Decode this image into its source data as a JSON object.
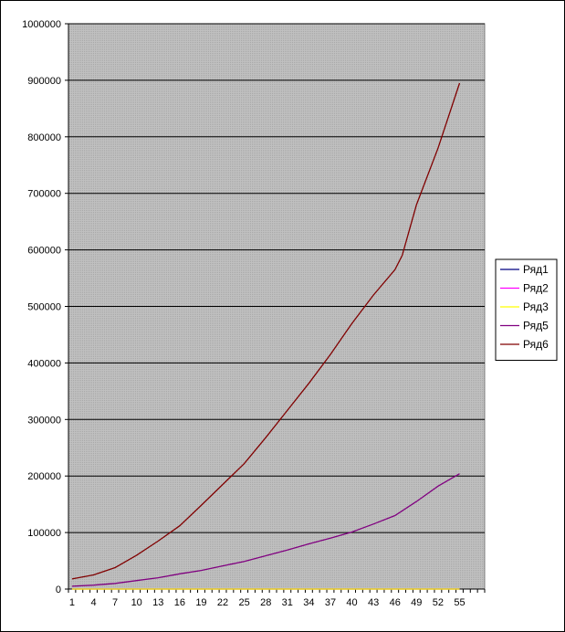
{
  "chart_data": {
    "type": "line",
    "title": "",
    "xlabel": "",
    "ylabel": "",
    "ylim": [
      0,
      1000000
    ],
    "y_ticks": [
      "0",
      "100000",
      "200000",
      "300000",
      "400000",
      "500000",
      "600000",
      "700000",
      "800000",
      "900000",
      "1000000"
    ],
    "x_ticks": [
      "1",
      "4",
      "7",
      "10",
      "13",
      "16",
      "19",
      "22",
      "25",
      "28",
      "31",
      "34",
      "37",
      "40",
      "43",
      "46",
      "49",
      "52",
      "55"
    ],
    "x_count": 58,
    "grid": "horizontal",
    "plot_background": "#c0c0c0",
    "legend_position": "right",
    "series": [
      {
        "name": "Ряд1",
        "color": "#000080",
        "x": [
          1,
          55
        ],
        "y": [
          0,
          0
        ]
      },
      {
        "name": "Ряд2",
        "color": "#ff00ff",
        "x": [
          1,
          55
        ],
        "y": [
          0,
          0
        ]
      },
      {
        "name": "Ряд3",
        "color": "#ffff00",
        "x": [
          1,
          55
        ],
        "y": [
          0,
          0
        ]
      },
      {
        "name": "Ряд5",
        "color": "#800080",
        "x": [
          1,
          4,
          7,
          10,
          13,
          16,
          19,
          22,
          25,
          28,
          31,
          34,
          37,
          40,
          43,
          46,
          49,
          52,
          55
        ],
        "y": [
          5000,
          7000,
          10000,
          15000,
          20000,
          27000,
          33000,
          41000,
          49000,
          59000,
          69000,
          80000,
          90000,
          101000,
          115000,
          130000,
          155000,
          182000,
          204000
        ]
      },
      {
        "name": "Ряд6",
        "color": "#800000",
        "x": [
          1,
          4,
          7,
          10,
          13,
          16,
          19,
          22,
          25,
          28,
          31,
          34,
          37,
          40,
          43,
          46,
          47,
          49,
          52,
          55
        ],
        "y": [
          18000,
          25000,
          38000,
          60000,
          85000,
          112000,
          148000,
          185000,
          222000,
          268000,
          316000,
          364000,
          415000,
          470000,
          520000,
          565000,
          590000,
          680000,
          780000,
          895000
        ]
      }
    ]
  }
}
